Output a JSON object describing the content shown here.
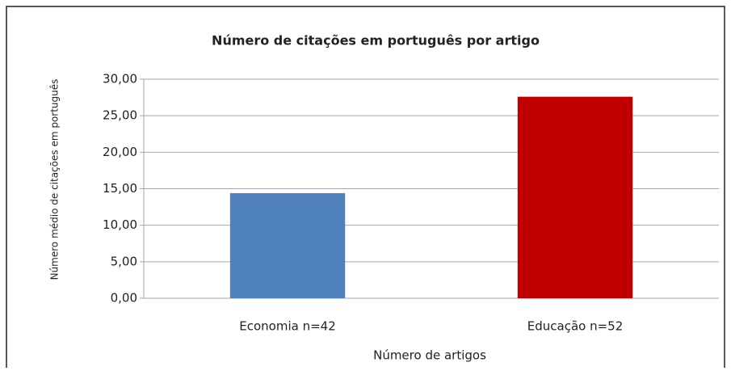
{
  "chart_data": {
    "type": "bar",
    "title": "Número de citações em português por artigo",
    "x_label": "Número de artigos",
    "y_label": "Número médio de citações em português",
    "categories": [
      "Economia n=42",
      "Educação n=52"
    ],
    "values": [
      14.4,
      27.6
    ],
    "colors": [
      "#4f81bd",
      "#c00000"
    ],
    "ylim": [
      0,
      30
    ],
    "yticks": [
      {
        "value": 0,
        "label": "0,00"
      },
      {
        "value": 5,
        "label": "5,00"
      },
      {
        "value": 10,
        "label": "10,00"
      },
      {
        "value": 15,
        "label": "15,00"
      },
      {
        "value": 20,
        "label": "20,00"
      },
      {
        "value": 25,
        "label": "25,00"
      },
      {
        "value": 30,
        "label": "30,00"
      }
    ],
    "grid": true
  }
}
